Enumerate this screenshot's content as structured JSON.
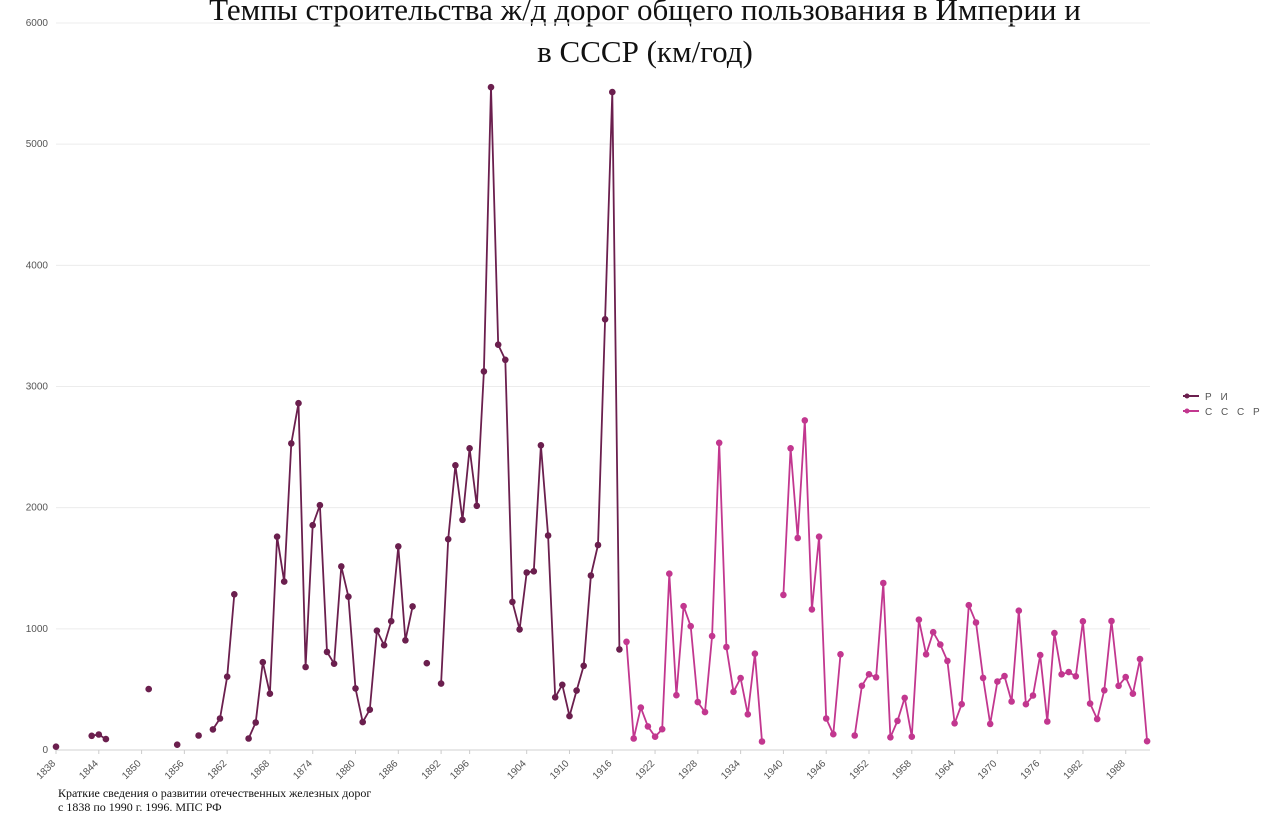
{
  "chart_data": {
    "type": "line",
    "title_lines": [
      "Темпы строительства ж/д дорог общего пользования в Империи и",
      "в СССР (км/год)"
    ],
    "ylim": [
      0,
      6000
    ],
    "yticks": [
      0,
      1000,
      2000,
      3000,
      4000,
      5000,
      6000
    ],
    "xlim": [
      1838,
      1990
    ],
    "xticks": [
      "1838",
      "1844",
      "1850",
      "1856",
      "1862",
      "1868",
      "1874",
      "1880",
      "1886",
      "1892",
      "1896",
      "1904",
      "1910",
      "1916",
      "1922",
      "1928",
      "1934",
      "1940",
      "1946",
      "1952",
      "1958",
      "1964",
      "1970",
      "1976",
      "1982",
      "1988"
    ],
    "grid": true,
    "legend_position": "right",
    "series": [
      {
        "name": "Р И",
        "color": "#6b1f4e",
        "points": [
          [
            1838,
            27
          ],
          null,
          [
            1843,
            117
          ],
          [
            1844,
            128
          ],
          [
            1845,
            90
          ],
          null,
          [
            1851,
            503
          ],
          null,
          [
            1855,
            44
          ],
          null,
          [
            1858,
            120
          ],
          null,
          [
            1860,
            170
          ],
          [
            1861,
            260
          ],
          [
            1862,
            605
          ],
          [
            1863,
            1285
          ],
          null,
          [
            1865,
            95
          ],
          [
            1866,
            227
          ],
          [
            1867,
            725
          ],
          [
            1868,
            465
          ],
          [
            1869,
            1760
          ],
          [
            1870,
            1390
          ],
          [
            1871,
            2530
          ],
          [
            1872,
            2862
          ],
          [
            1873,
            685
          ],
          [
            1874,
            1855
          ],
          [
            1875,
            2020
          ],
          [
            1876,
            810
          ],
          [
            1877,
            712
          ],
          [
            1878,
            1515
          ],
          [
            1879,
            1265
          ],
          [
            1880,
            508
          ],
          [
            1881,
            230
          ],
          [
            1882,
            333
          ],
          [
            1883,
            985
          ],
          [
            1884,
            865
          ],
          [
            1885,
            1063
          ],
          [
            1886,
            1680
          ],
          [
            1887,
            905
          ],
          [
            1888,
            1185
          ],
          null,
          [
            1890,
            716
          ],
          null,
          [
            1892,
            548
          ],
          [
            1893,
            1740
          ],
          [
            1894,
            2350
          ],
          [
            1895,
            1900
          ],
          [
            1896,
            2490
          ],
          [
            1897,
            2015
          ],
          [
            1898,
            3125
          ],
          [
            1899,
            5470
          ],
          [
            1900,
            3345
          ],
          [
            1901,
            3220
          ],
          [
            1902,
            1222
          ],
          [
            1903,
            995
          ],
          [
            1904,
            1465
          ],
          [
            1905,
            1475
          ],
          [
            1906,
            2515
          ],
          [
            1907,
            1770
          ],
          [
            1908,
            435
          ],
          [
            1909,
            538
          ],
          [
            1910,
            280
          ],
          [
            1911,
            490
          ],
          [
            1912,
            695
          ],
          [
            1913,
            1440
          ],
          [
            1914,
            1692
          ],
          [
            1915,
            3555
          ],
          [
            1916,
            5430
          ],
          [
            1917,
            830
          ]
        ]
      },
      {
        "name": "С С С Р",
        "color": "#c2378f",
        "points": [
          [
            1918,
            893
          ],
          [
            1919,
            95
          ],
          [
            1920,
            350
          ],
          [
            1921,
            195
          ],
          [
            1922,
            110
          ],
          [
            1923,
            172
          ],
          [
            1924,
            1455
          ],
          [
            1925,
            452
          ],
          [
            1926,
            1187
          ],
          [
            1927,
            1022
          ],
          [
            1928,
            395
          ],
          [
            1929,
            313
          ],
          [
            1930,
            940
          ],
          [
            1931,
            2535
          ],
          [
            1932,
            850
          ],
          [
            1933,
            480
          ],
          [
            1934,
            593
          ],
          [
            1935,
            295
          ],
          [
            1936,
            795
          ],
          [
            1937,
            70
          ],
          null,
          [
            1940,
            1280
          ],
          [
            1941,
            2490
          ],
          [
            1942,
            1750
          ],
          [
            1943,
            2720
          ],
          [
            1944,
            1160
          ],
          [
            1945,
            1760
          ],
          [
            1946,
            260
          ],
          [
            1947,
            130
          ],
          [
            1948,
            790
          ],
          null,
          [
            1950,
            120
          ],
          [
            1951,
            530
          ],
          [
            1952,
            625
          ],
          [
            1953,
            600
          ],
          [
            1954,
            1378
          ],
          [
            1955,
            105
          ],
          [
            1956,
            240
          ],
          [
            1957,
            430
          ],
          [
            1958,
            110
          ],
          [
            1959,
            1075
          ],
          [
            1960,
            790
          ],
          [
            1961,
            972
          ],
          [
            1962,
            870
          ],
          [
            1963,
            735
          ],
          [
            1964,
            220
          ],
          [
            1965,
            378
          ],
          [
            1966,
            1195
          ],
          [
            1967,
            1052
          ],
          [
            1968,
            595
          ],
          [
            1969,
            215
          ],
          [
            1970,
            565
          ],
          [
            1971,
            610
          ],
          [
            1972,
            400
          ],
          [
            1973,
            1150
          ],
          [
            1974,
            378
          ],
          [
            1975,
            450
          ],
          [
            1976,
            783
          ],
          [
            1977,
            235
          ],
          [
            1978,
            965
          ],
          [
            1979,
            625
          ],
          [
            1980,
            643
          ],
          [
            1981,
            608
          ],
          [
            1982,
            1062
          ],
          [
            1983,
            383
          ],
          [
            1984,
            255
          ],
          [
            1985,
            493
          ],
          [
            1986,
            1065
          ],
          [
            1987,
            530
          ],
          [
            1988,
            602
          ],
          [
            1989,
            465
          ],
          [
            1990,
            750
          ],
          [
            1991,
            73
          ]
        ]
      }
    ]
  },
  "source_note": {
    "line1": "Краткие сведения о развитии отечественных железных дорог",
    "line2": "с 1838 по 1990 г. 1996. МПС РФ"
  }
}
